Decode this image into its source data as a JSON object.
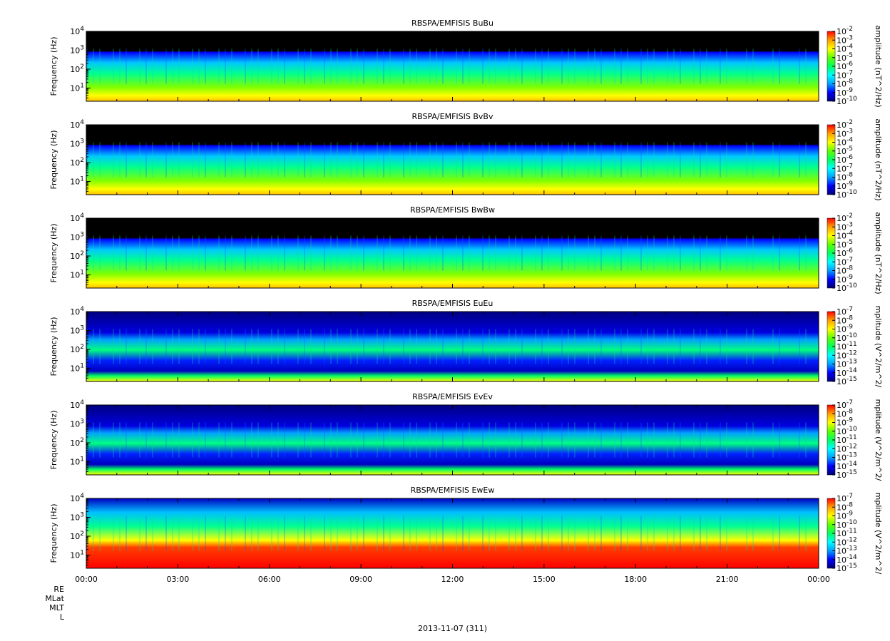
{
  "figure": {
    "date_label": "2013-11-07 (311)",
    "ephemeris_labels": [
      "RE",
      "MLat",
      "MLT",
      "L"
    ],
    "x_ticks": [
      "00:00",
      "03:00",
      "06:00",
      "09:00",
      "12:00",
      "15:00",
      "18:00",
      "21:00",
      "00:00"
    ]
  },
  "colors": {
    "scale": [
      "#000070",
      "#0000ff",
      "#00a0ff",
      "#00ffff",
      "#00ff60",
      "#60ff00",
      "#ffff00",
      "#ffa000",
      "#ff0000"
    ],
    "background_empty": "#000000"
  },
  "chart_data": [
    {
      "type": "heatmap",
      "title": "RBSPA/EMFISIS  BuBu",
      "ylabel": "Frequency (Hz)",
      "yscale": "log",
      "ylim": [
        2,
        10000
      ],
      "y_tick_labels": [
        "10^1",
        "10^2",
        "10^3",
        "10^4"
      ],
      "colorbar": {
        "label": "amplitude (nT^2/Hz)",
        "scale": "log",
        "range": [
          1e-10,
          0.01
        ],
        "tick_labels": [
          "10^-2",
          "10^-3",
          "10^-4",
          "10^-5",
          "10^-6",
          "10^-7",
          "10^-8",
          "10^-9",
          "10^-10"
        ]
      },
      "x_label_hours": [
        0,
        3,
        6,
        9,
        12,
        15,
        18,
        21,
        24
      ]
    },
    {
      "type": "heatmap",
      "title": "RBSPA/EMFISIS  BvBv",
      "ylabel": "Frequency (Hz)",
      "yscale": "log",
      "ylim": [
        2,
        10000
      ],
      "y_tick_labels": [
        "10^1",
        "10^2",
        "10^3",
        "10^4"
      ],
      "colorbar": {
        "label": "amplitude (nT^2/Hz)",
        "scale": "log",
        "range": [
          1e-10,
          0.01
        ],
        "tick_labels": [
          "10^-2",
          "10^-3",
          "10^-4",
          "10^-5",
          "10^-6",
          "10^-7",
          "10^-8",
          "10^-9",
          "10^-10"
        ]
      },
      "x_label_hours": [
        0,
        3,
        6,
        9,
        12,
        15,
        18,
        21,
        24
      ]
    },
    {
      "type": "heatmap",
      "title": "RBSPA/EMFISIS  BwBw",
      "ylabel": "Frequency (Hz)",
      "yscale": "log",
      "ylim": [
        2,
        10000
      ],
      "y_tick_labels": [
        "10^1",
        "10^2",
        "10^3",
        "10^4"
      ],
      "colorbar": {
        "label": "amplitude (nT^2/Hz)",
        "scale": "log",
        "range": [
          1e-10,
          0.01
        ],
        "tick_labels": [
          "10^-2",
          "10^-3",
          "10^-4",
          "10^-5",
          "10^-6",
          "10^-7",
          "10^-8",
          "10^-9",
          "10^-10"
        ]
      },
      "x_label_hours": [
        0,
        3,
        6,
        9,
        12,
        15,
        18,
        21,
        24
      ]
    },
    {
      "type": "heatmap",
      "title": "RBSPA/EMFISIS  EuEu",
      "ylabel": "Frequency (Hz)",
      "yscale": "log",
      "ylim": [
        2,
        10000
      ],
      "y_tick_labels": [
        "10^1",
        "10^2",
        "10^3",
        "10^4"
      ],
      "colorbar": {
        "label": "mplitude (V^2/m^2/",
        "scale": "log",
        "range": [
          1e-15,
          1e-07
        ],
        "tick_labels": [
          "10^-7",
          "10^-8",
          "10^-9",
          "10^-10",
          "10^-11",
          "10^-12",
          "10^-13",
          "10^-14",
          "10^-15"
        ]
      },
      "x_label_hours": [
        0,
        3,
        6,
        9,
        12,
        15,
        18,
        21,
        24
      ]
    },
    {
      "type": "heatmap",
      "title": "RBSPA/EMFISIS  EvEv",
      "ylabel": "Frequency (Hz)",
      "yscale": "log",
      "ylim": [
        2,
        10000
      ],
      "y_tick_labels": [
        "10^1",
        "10^2",
        "10^3",
        "10^4"
      ],
      "colorbar": {
        "label": "mplitude (V^2/m^2/",
        "scale": "log",
        "range": [
          1e-15,
          1e-07
        ],
        "tick_labels": [
          "10^-7",
          "10^-8",
          "10^-9",
          "10^-10",
          "10^-11",
          "10^-12",
          "10^-13",
          "10^-14",
          "10^-15"
        ]
      },
      "x_label_hours": [
        0,
        3,
        6,
        9,
        12,
        15,
        18,
        21,
        24
      ]
    },
    {
      "type": "heatmap",
      "title": "RBSPA/EMFISIS  EwEw",
      "ylabel": "Frequency (Hz)",
      "yscale": "log",
      "ylim": [
        2,
        10000
      ],
      "y_tick_labels": [
        "10^1",
        "10^2",
        "10^3",
        "10^4"
      ],
      "colorbar": {
        "label": "mplitude (V^2/m^2/",
        "scale": "log",
        "range": [
          1e-15,
          1e-07
        ],
        "tick_labels": [
          "10^-7",
          "10^-8",
          "10^-9",
          "10^-10",
          "10^-11",
          "10^-12",
          "10^-13",
          "10^-14",
          "10^-15"
        ]
      },
      "x_label_hours": [
        0,
        3,
        6,
        9,
        12,
        15,
        18,
        21,
        24
      ]
    }
  ]
}
